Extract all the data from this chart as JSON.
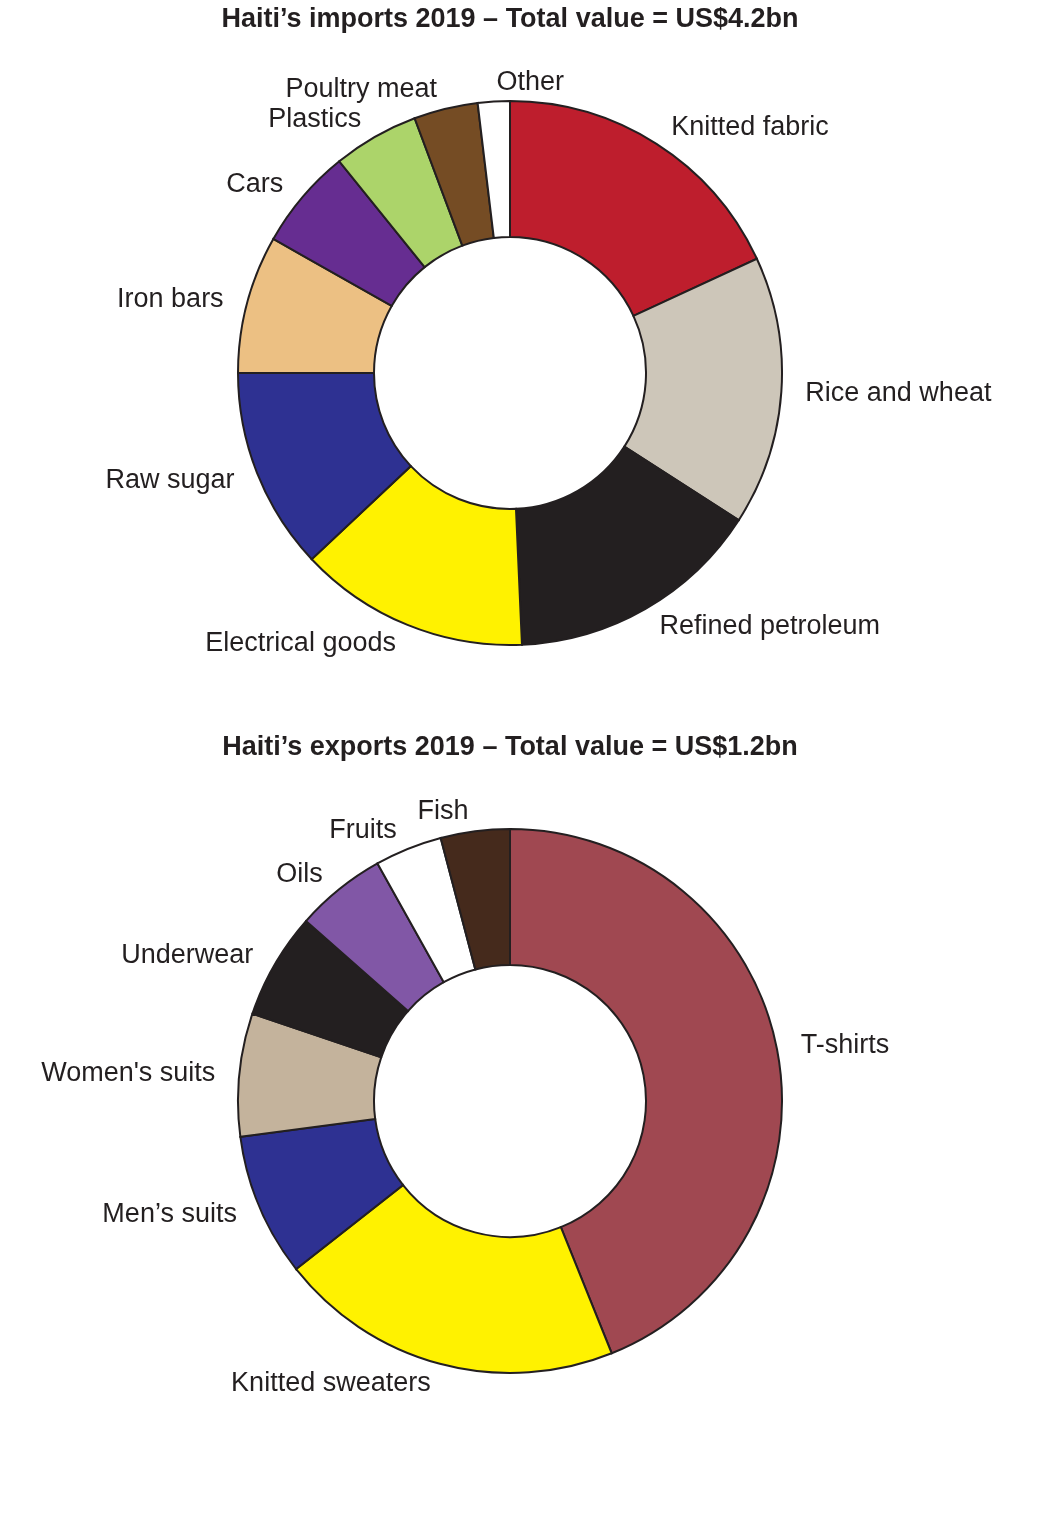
{
  "chart_data": [
    {
      "type": "donut",
      "title": "Haiti’s imports 2019 – Total value = US$4.2bn",
      "categories": [
        "Knitted fabric",
        "Rice and wheat",
        "Refined petroleum",
        "Electrical goods",
        "Raw sugar",
        "Iron bars",
        "Cars",
        "Plastics",
        "Poultry meat",
        "Other"
      ],
      "values": [
        18.1,
        16,
        15.2,
        13.7,
        12,
        8.2,
        6,
        5.1,
        3.8,
        1.9
      ],
      "colors": [
        "#be1e2d",
        "#cdc6b9",
        "#231f20",
        "#fff200",
        "#2e3192",
        "#ecc083",
        "#662d91",
        "#acd46a",
        "#754c24",
        "#ffffff"
      ]
    },
    {
      "type": "donut",
      "title": "Haiti’s exports 2019 – Total value = US$1.2bn",
      "categories": [
        "T-shirts",
        "Knitted sweaters",
        "Men’s suits",
        "Women's suits",
        "Underwear",
        "Oils",
        "Fruits",
        "Fish"
      ],
      "values": [
        43.9,
        20.5,
        8.5,
        7.3,
        6.3,
        5.4,
        4.0,
        4.1
      ],
      "colors": [
        "#a04851",
        "#fff200",
        "#2e3192",
        "#c4b39c",
        "#231f20",
        "#8157a6",
        "#ffffff",
        "#452a1c"
      ]
    }
  ]
}
